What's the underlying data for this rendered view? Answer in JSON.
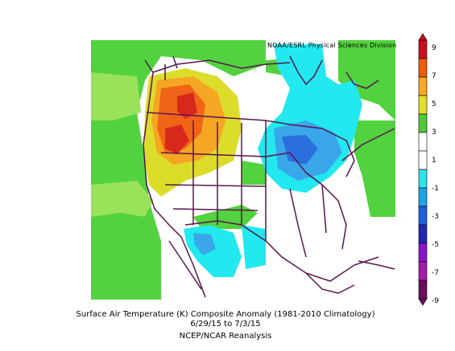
{
  "map": {
    "credit": "NOAA/ESRL Physical Sciences Division",
    "title": "Surface Air Temperature (K) Composite Anomaly (1981-2010 Climatology)",
    "dates": "6/29/15  to 7/3/15",
    "source": "NCEP/NCAR Reanalysis"
  },
  "colorbar": {
    "labels": [
      "9",
      "7",
      "5",
      "3",
      "1",
      "-1",
      "-3",
      "-5",
      "-7",
      "-9"
    ],
    "colors": [
      "#c8101e",
      "#f05a0a",
      "#f7a81f",
      "#e6dd2a",
      "#4fc93a",
      "#ffffff",
      "#ffffff",
      "#2fe3ea",
      "#20a4e8",
      "#1f5fdd",
      "#2424b5",
      "#8a16c9",
      "#a41caa",
      "#6b0f5d"
    ]
  },
  "palette": {
    "land_green": "#52d23e",
    "light_green": "#99e25a",
    "yellow": "#dcdc2a",
    "orange": "#f5a623",
    "red_orange": "#f06418",
    "red": "#d8281c",
    "cyan": "#22e8ef",
    "blue_light": "#3aa7ea",
    "blue": "#2b6fdc",
    "border": "#5a1450"
  }
}
